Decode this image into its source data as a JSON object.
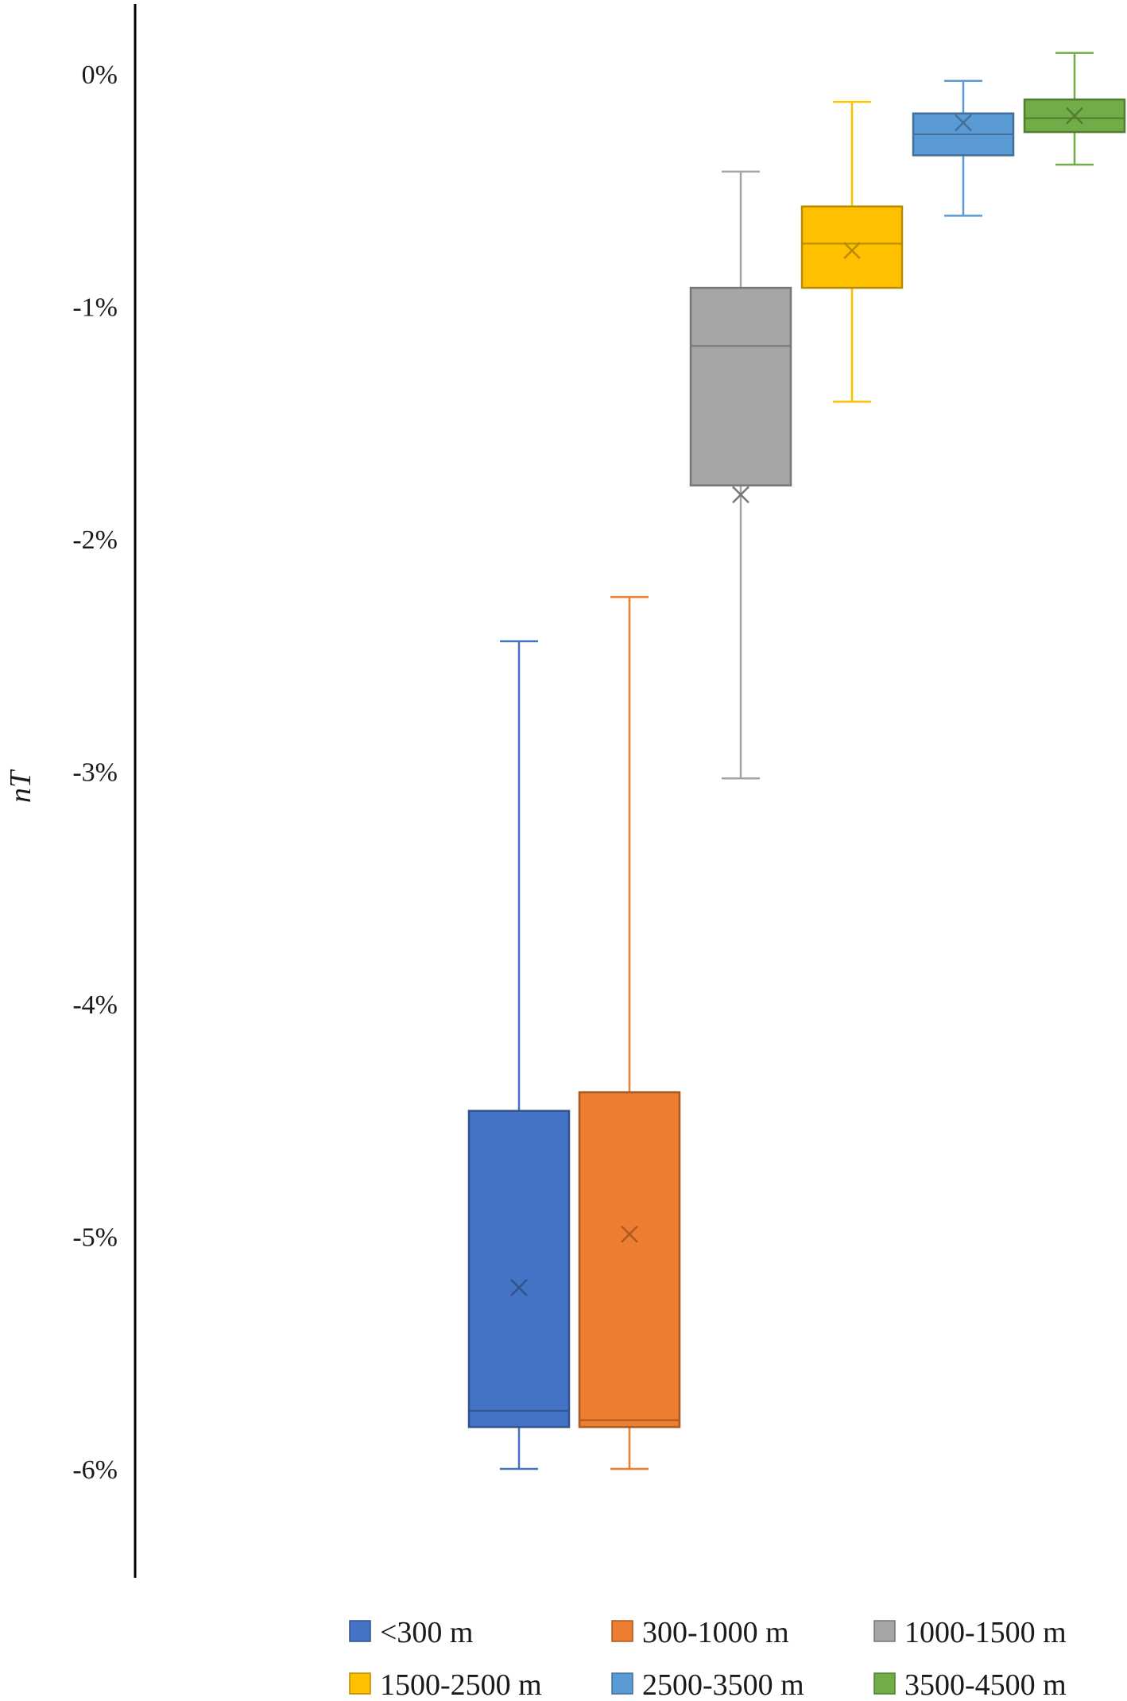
{
  "chart_data": {
    "type": "box",
    "title": "",
    "xlabel": "",
    "ylabel": "nT",
    "ylim": [
      -6.5,
      0.3
    ],
    "yticks": [
      0,
      -1,
      -2,
      -3,
      -4,
      -5,
      -6
    ],
    "ytick_labels": [
      "0%",
      "-1%",
      "-2%",
      "-3%",
      "-4%",
      "-5%",
      "-6%"
    ],
    "grid": false,
    "legend_position": "bottom",
    "series": [
      {
        "name": "<300 m",
        "color": "#4472C4",
        "min": -6.0,
        "q1": -5.82,
        "median": -5.75,
        "q3": -4.46,
        "max": -2.44,
        "mean": -5.22
      },
      {
        "name": "300-1000 m",
        "color": "#ED7D31",
        "min": -6.0,
        "q1": -5.82,
        "median": -5.79,
        "q3": -4.38,
        "max": -2.25,
        "mean": -4.99
      },
      {
        "name": "1000-1500 m",
        "color": "#A5A5A5",
        "min": -3.03,
        "q1": -1.77,
        "median": -1.17,
        "q3": -0.92,
        "max": -0.42,
        "mean": -1.81
      },
      {
        "name": "1500-2500 m",
        "color": "#FFC000",
        "min": -1.41,
        "q1": -0.92,
        "median": -0.73,
        "q3": -0.57,
        "max": -0.12,
        "mean": -0.76
      },
      {
        "name": "2500-3500 m",
        "color": "#5B9BD5",
        "min": -0.61,
        "q1": -0.35,
        "median": -0.26,
        "q3": -0.17,
        "max": -0.03,
        "mean": -0.21
      },
      {
        "name": "3500-4500 m",
        "color": "#70AD47",
        "min": -0.39,
        "q1": -0.25,
        "median": -0.19,
        "q3": -0.11,
        "max": 0.09,
        "mean": -0.18
      }
    ]
  }
}
